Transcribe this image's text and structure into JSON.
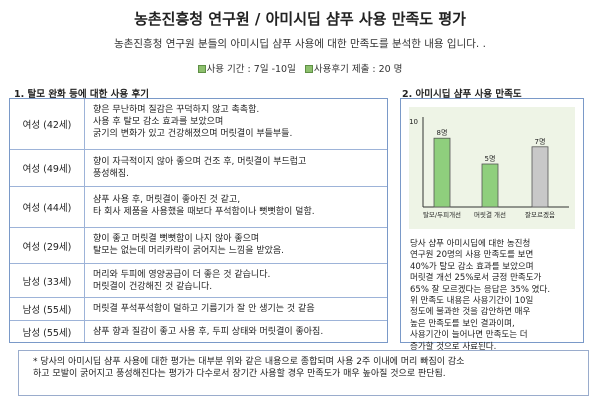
{
  "title": "농촌진흥청 연구원 / 아미시딥 샴푸 사용 만족도 평가",
  "subtitle": "농촌진흥청 연구원 분들의 아미시딥 샴푸 사용에 대한 만족도를 분석한 내용 입니다. .",
  "meta": {
    "period": "사용 기간 : 7일 -10일",
    "count": "사용후기 제출 : 20 명",
    "badge_color": "#8dc06d"
  },
  "left_section_title": "1. 탈모 완화 등에 대한 사용 후기",
  "right_section_title": "2. 아미시딥 샴푸 사용 만족도",
  "reviews": [
    {
      "who": "여성 (42세)",
      "lines": [
        "향은 무난하며 질감은 꾸덕하지 않고 촉촉함.",
        "사용 후 탈모 감소 효과를 보았으며",
        "굵기의 변화가 있고 건강해졌으며 머릿결이 부들부들."
      ]
    },
    {
      "who": "여성 (49세)",
      "lines": [
        "향이 자극적이지 않아 좋으며 건조 후, 머릿결이 부드럽고",
        "풍성해짐."
      ]
    },
    {
      "who": "여성 (44세)",
      "lines": [
        "샴푸 사용 후, 머릿결이 좋아진 것 같고,",
        "타 회사 제품을 사용했을 때보다 푸석함이나 뻣뻣함이 덜함."
      ]
    },
    {
      "who": "여성 (29세)",
      "lines": [
        "향이 좋고 머릿결 뻣뻣함이 나지 않아 좋으며",
        "탈모는 없는데 머리카락이 굵어지는 느낌을 받았음."
      ]
    },
    {
      "who": "남성 (33세)",
      "lines": [
        "머리와 두피에 영양공급이 더 좋은 것 같습니다.",
        "머릿결이 건강해진 것 같습니다."
      ]
    },
    {
      "who": "남성 (55세)",
      "lines": [
        "머릿결 푸석푸석함이 덜하고 기름기가 잘 안 생기는 것 같음"
      ]
    },
    {
      "who": "남성 (55세)",
      "lines": [
        "샴푸 향과 질감이 좋고 사용 후, 두피 상태와 머릿결이 좋아짐."
      ]
    }
  ],
  "chart_data": {
    "type": "bar",
    "title": "",
    "xlabel": "",
    "ylabel": "",
    "ylim": [
      0,
      10
    ],
    "yticks": [
      10
    ],
    "categories": [
      "탈모/두피개선",
      "머릿결 개선",
      "잘모르겠음"
    ],
    "values": [
      8,
      5,
      7
    ],
    "value_labels": [
      "8명",
      "5명",
      "7명"
    ],
    "colors": [
      "#8fcf7d",
      "#8fcf7d",
      "#c8c8c8"
    ],
    "grid": false,
    "legend": "none"
  },
  "summary_lines": [
    "당사 샴푸 아미시딥에 대한 농진청",
    "연구원 20명의 사용 만족도를 보면",
    "40%가 탈모 감소 효과를 보았으며",
    "머릿결 개선 25%로서 긍정 만족도가",
    "65% 잘 모르겠다는 응답은 35% 였다.",
    "위 만족도 내용은 사용기간이 10일",
    "정도에 불과한 것을 감안하면 매우",
    "높은 만족도를 보인 결과이며,",
    "사용기간이 늘어나면 만족도는 더",
    "증가할 것으로 사료된다."
  ],
  "footer_lines": [
    "* 당사의 아미시딥 샴푸 사용에 대한 평가는  대부분 위와 같은 내용으로 종합되며 사용 2주 이내에 머리 빠짐이 감소",
    "하고 모발이 굵어지고 풍성해진다는 평가가 다수로서 장기간 사용할 경우 만족도가 매우 높아질 것으로 판단됨."
  ]
}
